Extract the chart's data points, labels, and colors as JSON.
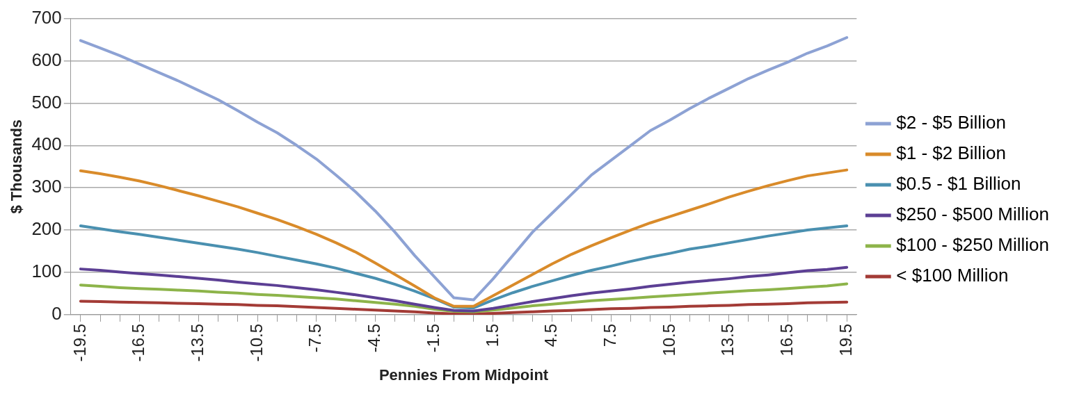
{
  "chart_data": {
    "type": "line",
    "xlabel": "Pennies From Midpoint",
    "ylabel": "$ Thousands",
    "categories": [
      "-19.5",
      null,
      null,
      "-16.5",
      null,
      null,
      "-13.5",
      null,
      null,
      "-10.5",
      null,
      null,
      "-7.5",
      null,
      null,
      "-4.5",
      null,
      null,
      "-1.5",
      null,
      null,
      "1.5",
      null,
      null,
      "4.5",
      null,
      null,
      "7.5",
      null,
      null,
      "10.5",
      null,
      null,
      "13.5",
      null,
      null,
      "16.5",
      null,
      null,
      "19.5"
    ],
    "series": [
      {
        "name": "$2 - $5 Billion",
        "color": "#8da2d4",
        "values": [
          648,
          630,
          612,
          592,
          572,
          552,
          530,
          508,
          482,
          455,
          430,
          400,
          368,
          330,
          290,
          245,
          195,
          140,
          90,
          40,
          35,
          85,
          140,
          195,
          240,
          285,
          330,
          365,
          400,
          435,
          460,
          487,
          512,
          535,
          558,
          578,
          597,
          618,
          635,
          655
        ]
      },
      {
        "name": "$1 - $2 Billion",
        "color": "#d98b2a",
        "values": [
          340,
          333,
          325,
          316,
          305,
          293,
          281,
          268,
          255,
          240,
          225,
          208,
          190,
          170,
          148,
          122,
          95,
          68,
          40,
          20,
          20,
          45,
          70,
          95,
          120,
          143,
          163,
          182,
          200,
          217,
          232,
          247,
          262,
          278,
          292,
          305,
          317,
          328,
          335,
          342
        ]
      },
      {
        "name": "$0.5 - $1 Billion",
        "color": "#4a90b0",
        "values": [
          210,
          203,
          196,
          190,
          183,
          176,
          169,
          162,
          155,
          147,
          138,
          129,
          120,
          110,
          98,
          86,
          72,
          56,
          38,
          18,
          16,
          35,
          52,
          67,
          80,
          93,
          105,
          115,
          126,
          136,
          145,
          155,
          162,
          170,
          178,
          186,
          193,
          200,
          205,
          210
        ]
      },
      {
        "name": "$250 - $500 Million",
        "color": "#5c3f94",
        "values": [
          108,
          105,
          101,
          97,
          94,
          90,
          86,
          82,
          77,
          73,
          69,
          64,
          59,
          53,
          47,
          40,
          33,
          25,
          17,
          10,
          9,
          15,
          23,
          31,
          38,
          45,
          51,
          56,
          61,
          67,
          72,
          77,
          81,
          85,
          90,
          94,
          99,
          104,
          107,
          112
        ]
      },
      {
        "name": "$100 - $250 Million",
        "color": "#8db44a",
        "values": [
          70,
          67,
          64,
          62,
          60,
          58,
          56,
          53,
          51,
          48,
          46,
          43,
          40,
          37,
          33,
          29,
          25,
          20,
          13,
          8,
          7,
          11,
          16,
          21,
          25,
          29,
          33,
          36,
          39,
          42,
          45,
          48,
          51,
          54,
          57,
          59,
          62,
          65,
          68,
          73
        ]
      },
      {
        "name": "< $100 Million",
        "color": "#a33b36",
        "values": [
          32,
          31,
          30,
          29,
          28,
          27,
          26,
          25,
          24,
          22,
          21,
          19,
          17,
          15,
          13,
          11,
          9,
          7,
          4,
          2,
          2,
          3,
          5,
          7,
          9,
          10,
          12,
          14,
          15,
          17,
          18,
          20,
          21,
          22,
          24,
          25,
          26,
          28,
          29,
          30
        ]
      }
    ],
    "ylim": [
      0,
      700
    ],
    "yticks": [
      0,
      100,
      200,
      300,
      400,
      500,
      600,
      700
    ],
    "grid": "y",
    "legend": "right",
    "marker": "none",
    "line_style": "solid"
  }
}
